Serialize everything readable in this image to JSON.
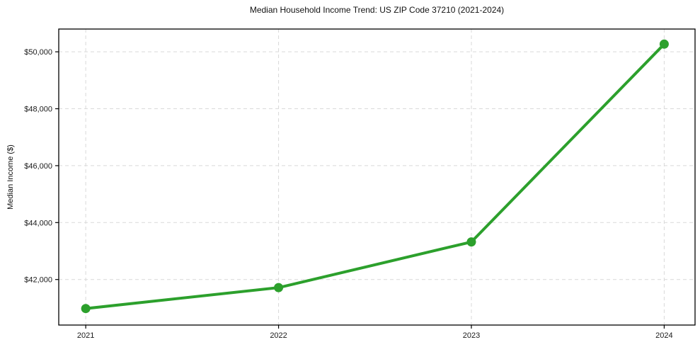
{
  "page": {
    "background": "#ffffff"
  },
  "chart_data": {
    "type": "line",
    "title": "Median Household Income Trend: US ZIP Code 37210 (2021-2024)",
    "xlabel": "",
    "ylabel": "Median Income ($)",
    "x": [
      2021,
      2022,
      2023,
      2024
    ],
    "xtick_labels": [
      "2021",
      "2022",
      "2023",
      "2024"
    ],
    "series": [
      {
        "name": "median_household_income",
        "values": [
          40980,
          41715,
          43320,
          50270
        ],
        "color": "#2ca02c",
        "marker": "circle",
        "line_width": 4,
        "marker_radius": 6.5
      }
    ],
    "yticks": [
      42000,
      44000,
      46000,
      48000,
      50000
    ],
    "ytick_labels": [
      "$42,000",
      "$44,000",
      "$46,000",
      "$48,000",
      "$50,000"
    ],
    "ylim": [
      40400,
      50800
    ],
    "xlim": [
      2020.86,
      2024.16
    ],
    "grid": true,
    "grid_style": "dashed",
    "grid_color": "#d9d9d9",
    "axis_color": "#000000",
    "legend_position": "none"
  }
}
